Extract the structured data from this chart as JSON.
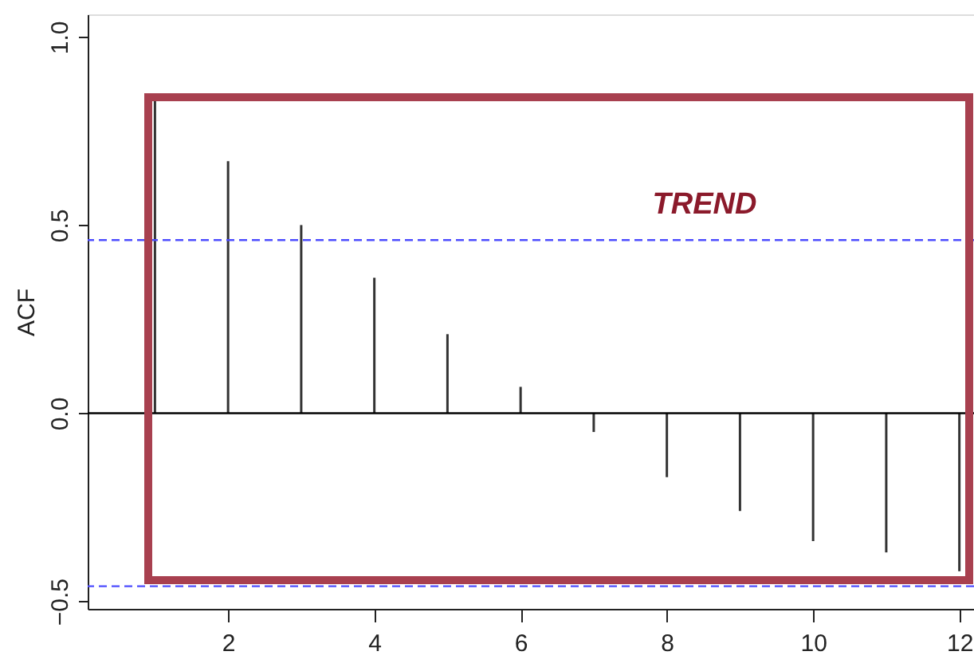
{
  "chart_data": {
    "type": "bar",
    "ylabel": "ACF",
    "x": [
      1,
      2,
      3,
      4,
      5,
      6,
      7,
      8,
      9,
      10,
      11,
      12
    ],
    "values": [
      0.84,
      0.67,
      0.5,
      0.36,
      0.21,
      0.07,
      -0.05,
      -0.17,
      -0.26,
      -0.34,
      -0.37,
      -0.42
    ],
    "color": "#333333",
    "xlim": [
      0.08,
      12.2
    ],
    "xticks": [
      2,
      4,
      6,
      8,
      10,
      12
    ],
    "ylim": [
      -0.52,
      1.06
    ],
    "yticks": [
      -0.5,
      {
        "value": 0,
        "label": "0.0"
      },
      0.5,
      {
        "value": 1,
        "label": "1.0"
      }
    ],
    "ref_lines": [
      {
        "axis": "y",
        "value": 0,
        "color": "#000000",
        "line_style": "solid"
      },
      {
        "axis": "y",
        "value": 0.46,
        "color": "#4d4dff",
        "line_style": "dashed"
      },
      {
        "axis": "y",
        "value": -0.46,
        "color": "#4d4dff",
        "line_style": "dashed"
      }
    ],
    "annotations": [
      "TREND"
    ],
    "grid": false
  }
}
